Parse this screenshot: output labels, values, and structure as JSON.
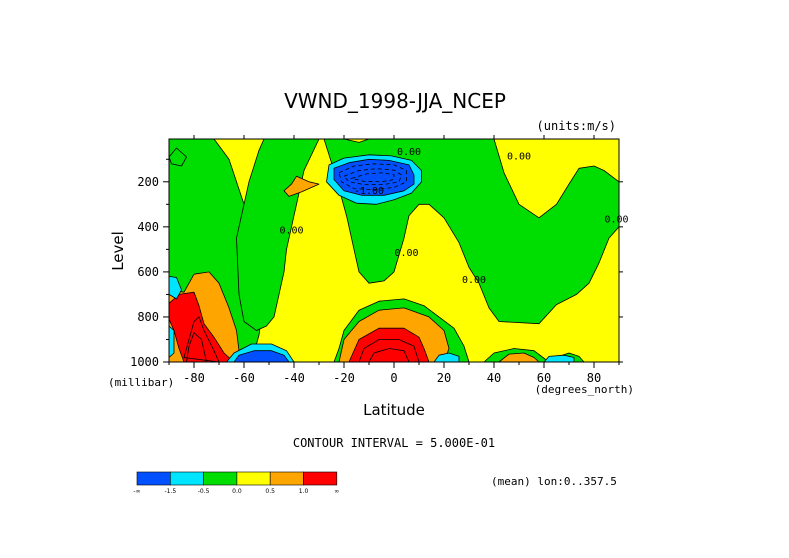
{
  "chart_data": {
    "type": "heatmap",
    "subtype": "filled-contour",
    "title": "VWND_1998-JJA_NCEP",
    "units_label": "(units:m/s)",
    "xlabel": "Latitude",
    "xunit_label": "(degrees_north)",
    "ylabel": "Level",
    "yunit_label": "(millibar)",
    "xlim": [
      -90,
      90
    ],
    "ylim": [
      1000,
      10
    ],
    "y_inverted": true,
    "x_ticks": [
      -80,
      -60,
      -40,
      -20,
      0,
      20,
      40,
      60,
      80
    ],
    "y_ticks": [
      200,
      400,
      600,
      800,
      1000
    ],
    "contour_interval_text": "CONTOUR INTERVAL = 5.000E-01",
    "footer_text": "(mean) lon:0..357.5",
    "contour_labels": [
      {
        "text": "0.00",
        "lat": -41,
        "level": 430
      },
      {
        "text": "0.00",
        "lat": 5,
        "level": 530
      },
      {
        "text": "0.00",
        "lat": 32,
        "level": 650
      },
      {
        "text": "0.00",
        "lat": 50,
        "level": 100
      },
      {
        "text": "0.00",
        "lat": 6,
        "level": 80
      },
      {
        "text": "-1.00",
        "lat": -10,
        "level": 255
      },
      {
        "text": "0.00",
        "lat": 89,
        "level": 380
      }
    ],
    "colorbar": {
      "colors": [
        "#0050ff",
        "#00e5ff",
        "#00dd00",
        "#ffff00",
        "#ffa500",
        "#ff0000"
      ],
      "boundary_labels": [
        "-∞",
        "-1.5",
        "-0.5",
        "0.0",
        "0.5",
        "1.0",
        "∞"
      ]
    },
    "regions": [
      {
        "level": 3,
        "pts": [
          [
            -90,
            10
          ],
          [
            90,
            10
          ],
          [
            90,
            1000
          ],
          [
            -90,
            1000
          ]
        ]
      },
      {
        "level": 2,
        "pts": [
          [
            -90,
            10
          ],
          [
            -72,
            10
          ],
          [
            -66,
            100
          ],
          [
            -60,
            300
          ],
          [
            -57,
            500
          ],
          [
            -54,
            650
          ],
          [
            -53,
            800
          ],
          [
            -54,
            880
          ],
          [
            -56,
            960
          ],
          [
            -60,
            1000
          ],
          [
            -86,
            1000
          ],
          [
            -90,
            950
          ]
        ]
      },
      {
        "level": 2,
        "pts": [
          [
            -52,
            10
          ],
          [
            -28,
            10
          ],
          [
            -24,
            150
          ],
          [
            -19,
            350
          ],
          [
            -16,
            500
          ],
          [
            -14,
            600
          ],
          [
            -10,
            650
          ],
          [
            -4,
            640
          ],
          [
            0,
            600
          ],
          [
            4,
            450
          ],
          [
            6,
            350
          ],
          [
            10,
            300
          ],
          [
            14,
            300
          ],
          [
            20,
            360
          ],
          [
            26,
            470
          ],
          [
            30,
            580
          ],
          [
            34,
            650
          ],
          [
            38,
            760
          ],
          [
            42,
            820
          ],
          [
            58,
            830
          ],
          [
            65,
            745
          ],
          [
            73,
            700
          ],
          [
            78,
            650
          ],
          [
            82,
            560
          ],
          [
            86,
            450
          ],
          [
            90,
            400
          ],
          [
            90,
            200
          ],
          [
            84,
            150
          ],
          [
            80,
            130
          ],
          [
            74,
            140
          ],
          [
            70,
            210
          ],
          [
            65,
            300
          ],
          [
            58,
            360
          ],
          [
            50,
            300
          ],
          [
            44,
            160
          ],
          [
            40,
            10
          ],
          [
            20,
            10
          ],
          [
            10,
            10
          ],
          [
            -4,
            10
          ],
          [
            -10,
            10
          ],
          [
            -14,
            25
          ],
          [
            -20,
            10
          ],
          [
            -30,
            10
          ],
          [
            -36,
            150
          ],
          [
            -40,
            350
          ],
          [
            -43,
            500
          ],
          [
            -44,
            600
          ],
          [
            -46,
            700
          ],
          [
            -48,
            800
          ],
          [
            -51,
            840
          ],
          [
            -55,
            860
          ],
          [
            -60,
            820
          ],
          [
            -62,
            700
          ],
          [
            -63,
            450
          ],
          [
            -58,
            200
          ],
          [
            -54,
            60
          ]
        ]
      },
      {
        "level": 2,
        "pts": [
          [
            -90,
            90
          ],
          [
            -87,
            50
          ],
          [
            -83,
            90
          ],
          [
            -85,
            130
          ],
          [
            -89,
            120
          ]
        ]
      },
      {
        "level": 2,
        "pts": [
          [
            -20,
            860
          ],
          [
            -14,
            770
          ],
          [
            -6,
            730
          ],
          [
            4,
            720
          ],
          [
            12,
            750
          ],
          [
            18,
            800
          ],
          [
            24,
            850
          ],
          [
            28,
            930
          ],
          [
            30,
            1000
          ],
          [
            -24,
            1000
          ],
          [
            -22,
            940
          ]
        ]
      },
      {
        "level": 2,
        "pts": [
          [
            36,
            1000
          ],
          [
            40,
            960
          ],
          [
            48,
            940
          ],
          [
            56,
            950
          ],
          [
            62,
            1000
          ]
        ]
      },
      {
        "level": 2,
        "pts": [
          [
            64,
            1000
          ],
          [
            66,
            975
          ],
          [
            70,
            960
          ],
          [
            74,
            975
          ],
          [
            76,
            1000
          ]
        ]
      },
      {
        "level": 4,
        "pts": [
          [
            -90,
            680
          ],
          [
            -84,
            690
          ],
          [
            -80,
            610
          ],
          [
            -74,
            600
          ],
          [
            -70,
            650
          ],
          [
            -66,
            760
          ],
          [
            -63,
            860
          ],
          [
            -62,
            950
          ],
          [
            -60,
            1000
          ],
          [
            -90,
            1000
          ]
        ]
      },
      {
        "level": 4,
        "pts": [
          [
            -39,
            175
          ],
          [
            -34,
            200
          ],
          [
            -30,
            210
          ],
          [
            -37,
            245
          ],
          [
            -42,
            265
          ],
          [
            -44,
            240
          ],
          [
            -41,
            210
          ]
        ]
      },
      {
        "level": 4,
        "pts": [
          [
            -22,
            1000
          ],
          [
            -20,
            900
          ],
          [
            -14,
            820
          ],
          [
            -6,
            770
          ],
          [
            4,
            760
          ],
          [
            14,
            800
          ],
          [
            20,
            860
          ],
          [
            22,
            940
          ],
          [
            20,
            1000
          ]
        ]
      },
      {
        "level": 4,
        "pts": [
          [
            42,
            1000
          ],
          [
            46,
            965
          ],
          [
            52,
            960
          ],
          [
            56,
            980
          ],
          [
            58,
            1000
          ]
        ]
      },
      {
        "level": 5,
        "pts": [
          [
            -86,
            700
          ],
          [
            -80,
            690
          ],
          [
            -78,
            750
          ],
          [
            -76,
            830
          ],
          [
            -72,
            890
          ],
          [
            -68,
            960
          ],
          [
            -64,
            1000
          ],
          [
            -84,
            1000
          ],
          [
            -86,
            940
          ],
          [
            -88,
            860
          ],
          [
            -90,
            810
          ],
          [
            -90,
            740
          ]
        ]
      },
      {
        "level": 5,
        "pts": [
          [
            -18,
            1000
          ],
          [
            -14,
            900
          ],
          [
            -6,
            850
          ],
          [
            4,
            850
          ],
          [
            10,
            890
          ],
          [
            12,
            940
          ],
          [
            14,
            1000
          ]
        ]
      },
      {
        "level": 1,
        "pts": [
          [
            -90,
            620
          ],
          [
            -87,
            625
          ],
          [
            -85,
            680
          ],
          [
            -87,
            720
          ],
          [
            -90,
            700
          ]
        ]
      },
      {
        "level": 1,
        "pts": [
          [
            -90,
            840
          ],
          [
            -88,
            860
          ],
          [
            -88,
            960
          ],
          [
            -90,
            980
          ]
        ]
      },
      {
        "level": 1,
        "pts": [
          [
            -67,
            1000
          ],
          [
            -64,
            960
          ],
          [
            -57,
            920
          ],
          [
            -49,
            920
          ],
          [
            -43,
            950
          ],
          [
            -40,
            1000
          ]
        ]
      },
      {
        "level": 1,
        "pts": [
          [
            -26,
            125
          ],
          [
            -20,
            95
          ],
          [
            -10,
            80
          ],
          [
            -1,
            85
          ],
          [
            7,
            105
          ],
          [
            11,
            150
          ],
          [
            11,
            200
          ],
          [
            7,
            250
          ],
          [
            0,
            280
          ],
          [
            -7,
            300
          ],
          [
            -15,
            295
          ],
          [
            -22,
            260
          ],
          [
            -27,
            200
          ]
        ]
      },
      {
        "level": 1,
        "pts": [
          [
            16,
            1000
          ],
          [
            18,
            970
          ],
          [
            22,
            960
          ],
          [
            26,
            975
          ],
          [
            26,
            1000
          ]
        ]
      },
      {
        "level": 1,
        "pts": [
          [
            60,
            1000
          ],
          [
            62,
            975
          ],
          [
            68,
            970
          ],
          [
            72,
            980
          ],
          [
            72,
            1000
          ]
        ]
      },
      {
        "level": 0,
        "pts": [
          [
            -64,
            1000
          ],
          [
            -62,
            970
          ],
          [
            -56,
            950
          ],
          [
            -49,
            950
          ],
          [
            -44,
            970
          ],
          [
            -42,
            1000
          ]
        ]
      },
      {
        "level": 0,
        "pts": [
          [
            -24,
            140
          ],
          [
            -18,
            115
          ],
          [
            -10,
            100
          ],
          [
            -2,
            105
          ],
          [
            6,
            125
          ],
          [
            8,
            170
          ],
          [
            8,
            210
          ],
          [
            4,
            240
          ],
          [
            -4,
            260
          ],
          [
            -13,
            260
          ],
          [
            -20,
            240
          ],
          [
            -24,
            190
          ]
        ]
      }
    ],
    "contour_lines": [
      {
        "style": "dashed",
        "pts": [
          [
            -22,
            160
          ],
          [
            -16,
            130
          ],
          [
            -8,
            120
          ],
          [
            0,
            125
          ],
          [
            5,
            150
          ],
          [
            5,
            200
          ],
          [
            0,
            225
          ],
          [
            -8,
            235
          ],
          [
            -16,
            230
          ],
          [
            -21,
            200
          ]
        ]
      },
      {
        "style": "dashed",
        "pts": [
          [
            -20,
            175
          ],
          [
            -14,
            150
          ],
          [
            -7,
            142
          ],
          [
            0,
            148
          ],
          [
            3,
            170
          ],
          [
            2,
            200
          ],
          [
            -4,
            212
          ],
          [
            -12,
            212
          ],
          [
            -18,
            200
          ]
        ]
      },
      {
        "style": "dashed",
        "pts": [
          [
            -17,
            185
          ],
          [
            -11,
            165
          ],
          [
            -5,
            160
          ],
          [
            0,
            168
          ],
          [
            0,
            190
          ],
          [
            -5,
            200
          ],
          [
            -12,
            198
          ]
        ]
      },
      {
        "style": "solid",
        "pts": [
          [
            -84,
            980
          ],
          [
            -82,
            900
          ],
          [
            -80,
            820
          ],
          [
            -78,
            800
          ],
          [
            -76,
            860
          ],
          [
            -72,
            950
          ],
          [
            -70,
            1000
          ]
        ]
      },
      {
        "style": "solid",
        "pts": [
          [
            -83,
            1000
          ],
          [
            -82,
            930
          ],
          [
            -80,
            870
          ],
          [
            -77,
            900
          ],
          [
            -75,
            1000
          ]
        ]
      },
      {
        "style": "solid",
        "pts": [
          [
            -14,
            1000
          ],
          [
            -12,
            940
          ],
          [
            -6,
            900
          ],
          [
            2,
            900
          ],
          [
            8,
            930
          ],
          [
            10,
            1000
          ]
        ]
      },
      {
        "style": "solid",
        "pts": [
          [
            -10,
            1000
          ],
          [
            -8,
            960
          ],
          [
            -2,
            940
          ],
          [
            4,
            950
          ],
          [
            6,
            1000
          ]
        ]
      }
    ]
  }
}
